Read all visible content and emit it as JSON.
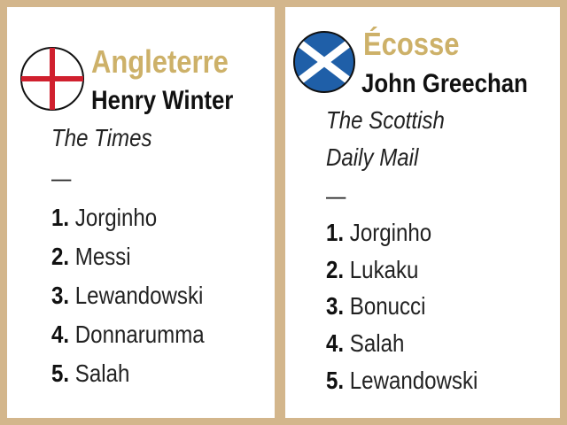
{
  "left": {
    "flag_icon": "england-flag-icon",
    "country": "Angleterre",
    "journalist": "Henry Winter",
    "newspaper_lines": [
      "The Times"
    ],
    "separator": "—",
    "ranking": [
      {
        "rank": "1.",
        "player": "Jorginho"
      },
      {
        "rank": "2.",
        "player": "Messi"
      },
      {
        "rank": "3.",
        "player": "Lewandowski"
      },
      {
        "rank": "4.",
        "player": "Donnarumma"
      },
      {
        "rank": "5.",
        "player": "Salah"
      }
    ]
  },
  "right": {
    "flag_icon": "scotland-flag-icon",
    "country": "Écosse",
    "journalist": "John Greechan",
    "newspaper_lines": [
      "The Scottish",
      "Daily Mail"
    ],
    "separator": "—",
    "ranking": [
      {
        "rank": "1.",
        "player": "Jorginho"
      },
      {
        "rank": "2.",
        "player": "Lukaku"
      },
      {
        "rank": "3.",
        "player": "Bonucci"
      },
      {
        "rank": "4.",
        "player": "Salah"
      },
      {
        "rank": "5.",
        "player": "Lewandowski"
      }
    ]
  },
  "colors": {
    "border": "#d3b68c",
    "country_text": "#cdb169",
    "england_red": "#d0202e",
    "scotland_blue": "#1f5fa8"
  }
}
